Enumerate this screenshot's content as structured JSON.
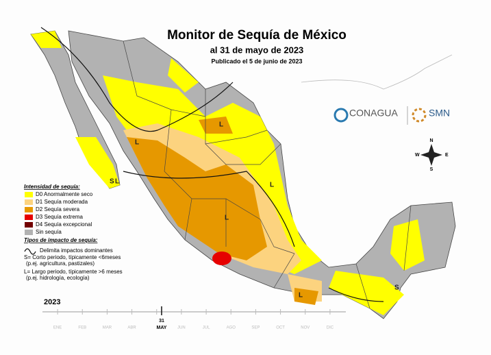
{
  "header": {
    "title": "Monitor de Sequía de México",
    "subtitle": "al 31 de mayo de 2023",
    "published": "Publicado el 5 de junio de 2023"
  },
  "logos": {
    "conagua": "CONAGUA",
    "smn": "SMN"
  },
  "compass": {
    "n": "N",
    "e": "E",
    "s": "S",
    "w": "W"
  },
  "legend": {
    "title": "Intensidad de sequía:",
    "items": [
      {
        "label": "D0 Anormalmente seco",
        "color": "#ffff00"
      },
      {
        "label": "D1 Sequía moderada",
        "color": "#fcd37f"
      },
      {
        "label": "D2 Sequía severa",
        "color": "#e69800"
      },
      {
        "label": "D3 Sequía extrema",
        "color": "#e60000"
      },
      {
        "label": "D4 Sequía excepcional",
        "color": "#730000"
      },
      {
        "label": "Sin sequía",
        "color": "#b2b2b2"
      }
    ]
  },
  "impacts": {
    "title": "Tipos de impacto de sequía:",
    "lines": [
      "Delimita impactos dominantes",
      "S= Corto periodo, típicamente <6meses",
      "(p.ej. agricultura, pastizales)",
      "L= Largo periodo, típicamente >6 meses",
      "(p.ej. hidrología, ecología)"
    ]
  },
  "map_labels": [
    "S",
    "L",
    "L",
    "L",
    "L",
    "L",
    "L",
    "S"
  ],
  "timeline": {
    "year": "2023",
    "day": "31",
    "month": "MAY",
    "months": [
      "ENE",
      "FEB",
      "MAR",
      "ABR",
      "MAY",
      "JUN",
      "JUL",
      "AGO",
      "SEP",
      "OCT",
      "NOV",
      "DIC"
    ]
  }
}
